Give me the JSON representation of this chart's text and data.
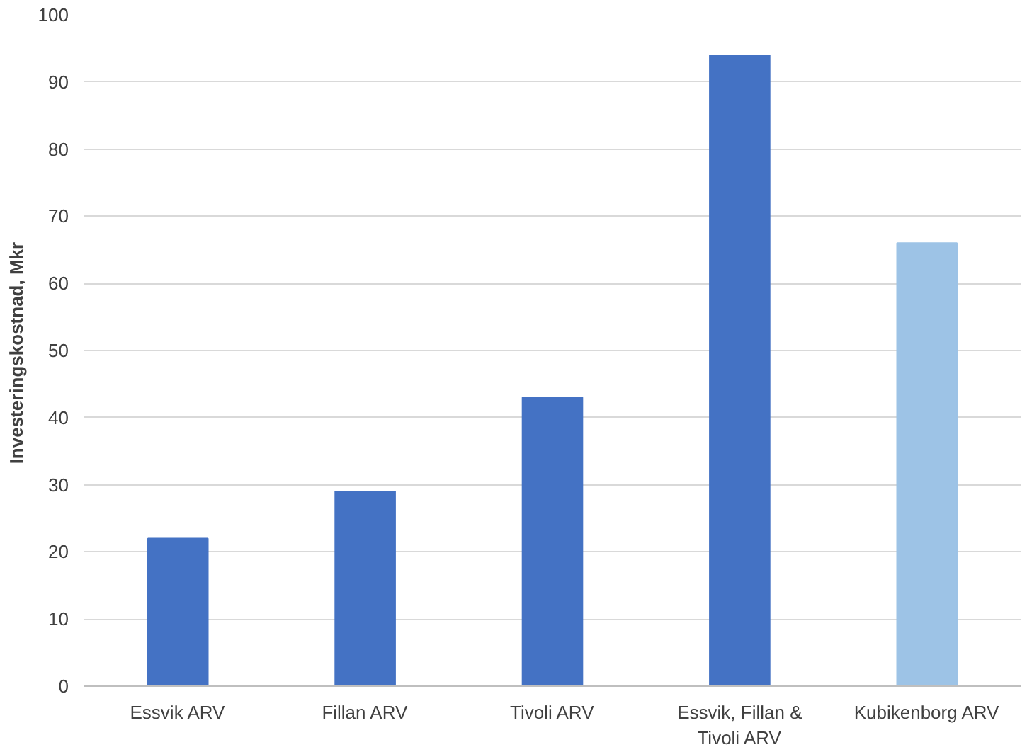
{
  "chart_data": {
    "type": "bar",
    "ylabel": "Investeringskostnad,  Mkr",
    "categories": [
      "Essvik ARV",
      "Fillan ARV",
      "Tivoli ARV",
      "Essvik, Fillan & Tivoli ARV",
      "Kubikenborg ARV"
    ],
    "values": [
      22,
      29,
      43,
      94,
      66
    ],
    "colors": [
      "#4472c4",
      "#4472c4",
      "#4472c4",
      "#4472c4",
      "#9dc3e6"
    ],
    "ylim": [
      0,
      100
    ],
    "yticks": [
      0,
      10,
      20,
      30,
      40,
      50,
      60,
      70,
      80,
      90,
      100
    ],
    "grid": "y"
  }
}
